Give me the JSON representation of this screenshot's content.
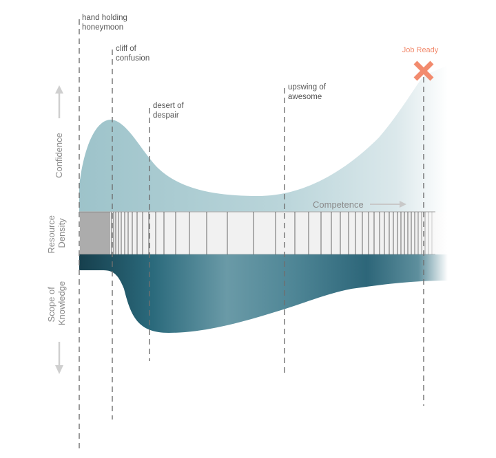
{
  "colors": {
    "confidence_fill": "#9fc4cb",
    "scope_fill": "#1f5d6f",
    "marker": "#f28b6e",
    "dashed_line": "#6f6f6f",
    "axis_text": "#8a8a8a",
    "arrow": "#cccccc"
  },
  "milestones": [
    {
      "lines": [
        "hand holding",
        "honeymoon"
      ]
    },
    {
      "lines": [
        "cliff of",
        "confusion"
      ]
    },
    {
      "lines": [
        "desert of",
        "despair"
      ]
    },
    {
      "lines": [
        "upswing of",
        "awesome"
      ]
    }
  ],
  "goal": {
    "label": "Job Ready",
    "icon": "x-mark-icon"
  },
  "axes": {
    "confidence": "Confidence",
    "resource_density": [
      "Resource",
      "Density"
    ],
    "scope_of_knowledge": [
      "Scope of",
      "Knowledge"
    ],
    "competence": "Competence"
  },
  "icons": {
    "confidence_arrow": "arrow-up-icon",
    "knowledge_arrow": "arrow-down-icon",
    "competence_arrow": "arrow-right-icon"
  }
}
